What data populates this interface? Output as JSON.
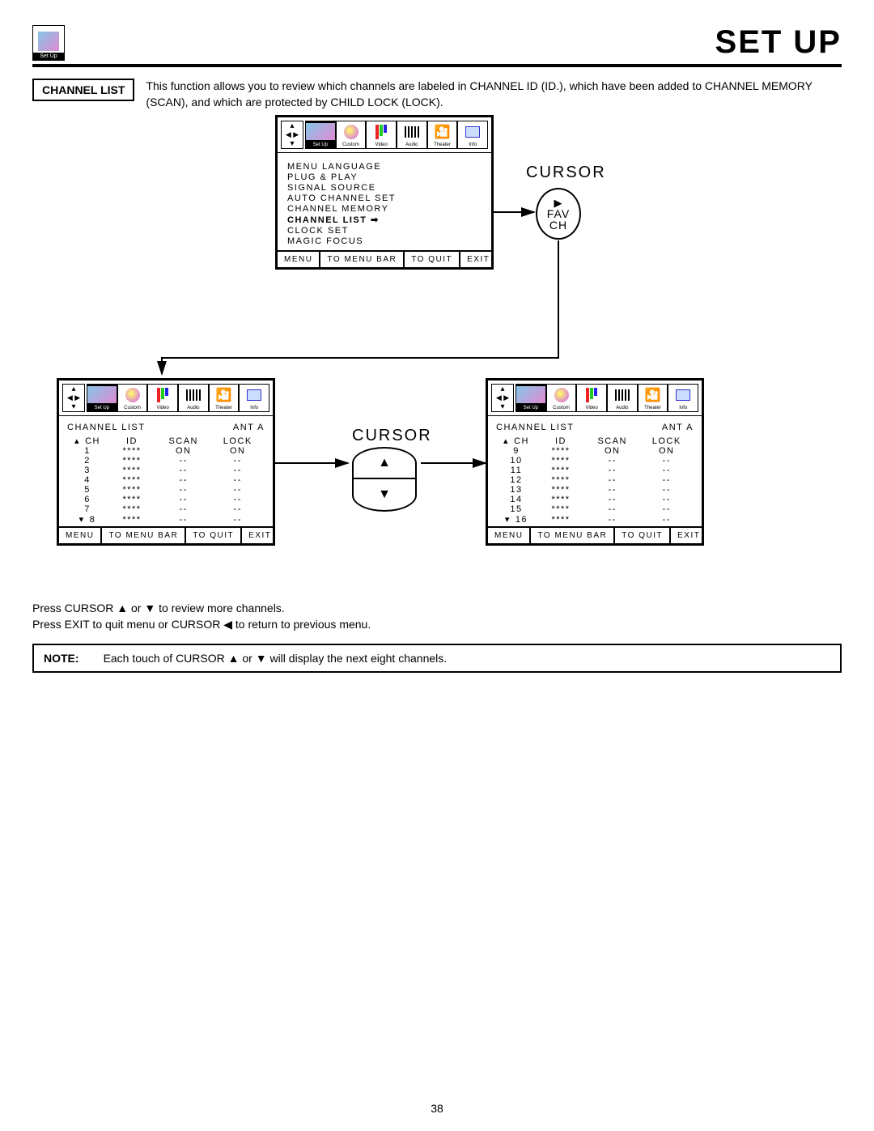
{
  "header": {
    "title": "SET UP",
    "icon_label": "Set Up"
  },
  "intro": {
    "label": "CHANNEL LIST",
    "text": "This function allows you to review which channels are labeled in CHANNEL ID (ID.), which have been added to CHANNEL MEMORY (SCAN), and which are protected by CHILD LOCK (LOCK)."
  },
  "menubar": {
    "items": [
      "Set Up",
      "Custom",
      "Video",
      "Audio",
      "Theater",
      "Info"
    ]
  },
  "setup_menu": {
    "lines": [
      "MENU LANGUAGE",
      "PLUG & PLAY",
      "SIGNAL SOURCE",
      "AUTO CHANNEL SET",
      "CHANNEL MEMORY",
      "CHANNEL LIST",
      "CLOCK SET",
      "MAGIC FOCUS"
    ],
    "selected_index": 5
  },
  "footer": {
    "menu": "MENU",
    "bar": "TO MENU BAR",
    "quit": "TO QUIT",
    "exit": "EXIT"
  },
  "cursor": {
    "label": "CURSOR",
    "fav_top": "▶",
    "fav_l1": "FAV",
    "fav_l2": "CH"
  },
  "channel_list": {
    "title": "CHANNEL LIST",
    "ant": "ANT A",
    "columns": [
      "CH",
      "ID",
      "SCAN",
      "LOCK"
    ],
    "page1": [
      {
        "ch": "1",
        "id": "****",
        "scan": "ON",
        "lock": "ON"
      },
      {
        "ch": "2",
        "id": "****",
        "scan": "--",
        "lock": "--"
      },
      {
        "ch": "3",
        "id": "****",
        "scan": "--",
        "lock": "--"
      },
      {
        "ch": "4",
        "id": "****",
        "scan": "--",
        "lock": "--"
      },
      {
        "ch": "5",
        "id": "****",
        "scan": "--",
        "lock": "--"
      },
      {
        "ch": "6",
        "id": "****",
        "scan": "--",
        "lock": "--"
      },
      {
        "ch": "7",
        "id": "****",
        "scan": "--",
        "lock": "--"
      },
      {
        "ch": "8",
        "id": "****",
        "scan": "--",
        "lock": "--"
      }
    ],
    "page2": [
      {
        "ch": "9",
        "id": "****",
        "scan": "ON",
        "lock": "ON"
      },
      {
        "ch": "10",
        "id": "****",
        "scan": "--",
        "lock": "--"
      },
      {
        "ch": "11",
        "id": "****",
        "scan": "--",
        "lock": "--"
      },
      {
        "ch": "12",
        "id": "****",
        "scan": "--",
        "lock": "--"
      },
      {
        "ch": "13",
        "id": "****",
        "scan": "--",
        "lock": "--"
      },
      {
        "ch": "14",
        "id": "****",
        "scan": "--",
        "lock": "--"
      },
      {
        "ch": "15",
        "id": "****",
        "scan": "--",
        "lock": "--"
      },
      {
        "ch": "16",
        "id": "****",
        "scan": "--",
        "lock": "--"
      }
    ]
  },
  "instructions": {
    "l1": "Press CURSOR ▲ or ▼ to review more channels.",
    "l2": "Press EXIT to quit menu or CURSOR ◀ to return to previous menu."
  },
  "note": {
    "label": "NOTE:",
    "text": "Each touch of CURSOR ▲ or ▼ will display the next eight channels."
  },
  "page_number": "38"
}
